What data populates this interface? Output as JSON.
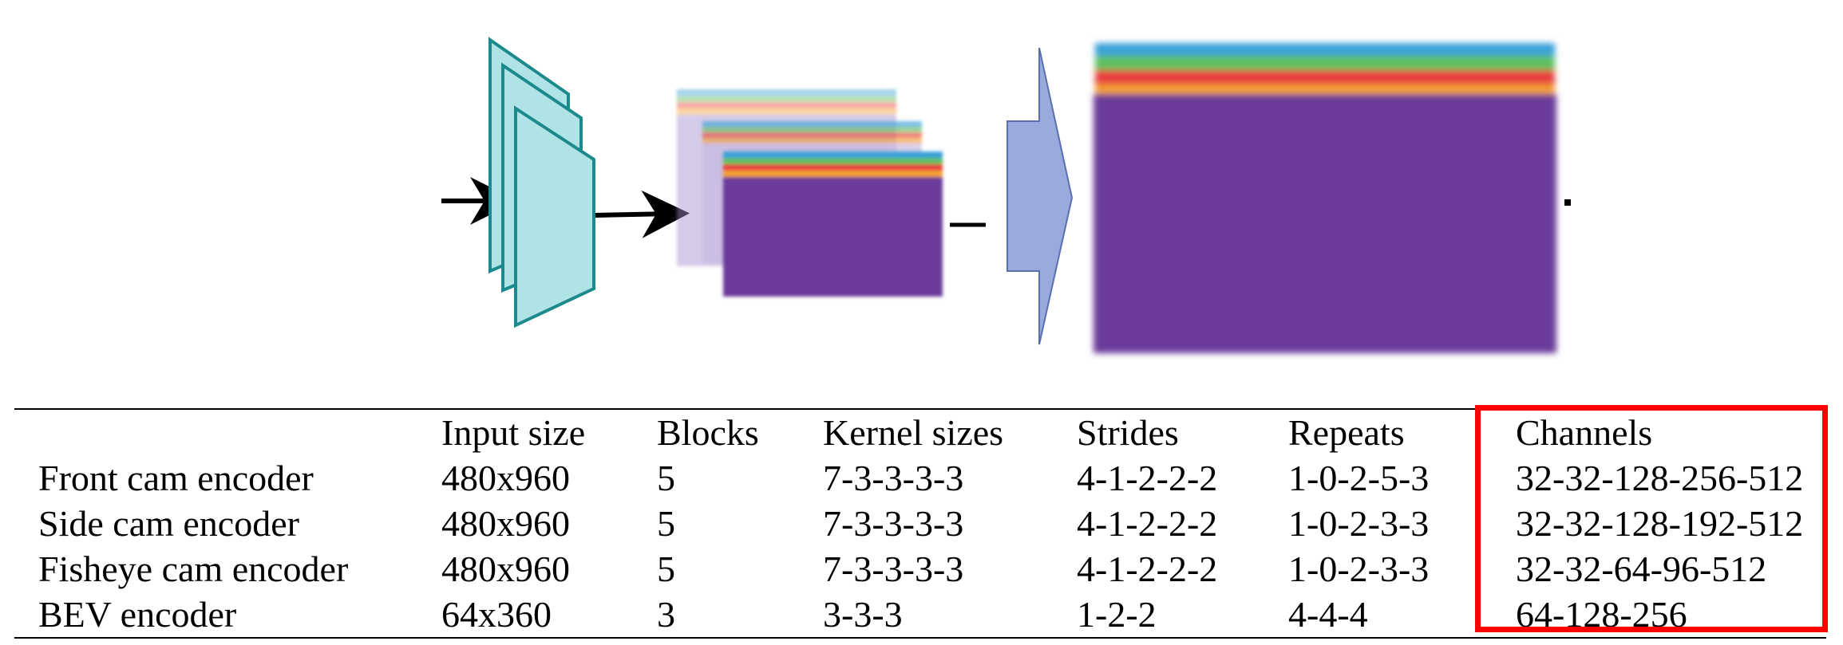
{
  "table": {
    "headers": [
      "",
      "Input size",
      "Blocks",
      "Kernel sizes",
      "Strides",
      "Repeats",
      "Channels"
    ],
    "rows": [
      {
        "name": "Front cam encoder",
        "input_size": "480x960",
        "blocks": "5",
        "kernel_sizes": "7-3-3-3-3",
        "strides": "4-1-2-2-2",
        "repeats": "1-0-2-5-3",
        "channels": "32-32-128-256-512"
      },
      {
        "name": "Side cam encoder",
        "input_size": "480x960",
        "blocks": "5",
        "kernel_sizes": "7-3-3-3-3",
        "strides": "4-1-2-2-2",
        "repeats": "1-0-2-3-3",
        "channels": "32-32-128-192-512"
      },
      {
        "name": "Fisheye cam encoder",
        "input_size": "480x960",
        "blocks": "5",
        "kernel_sizes": "7-3-3-3-3",
        "strides": "4-1-2-2-2",
        "repeats": "1-0-2-3-3",
        "channels": "32-32-64-96-512"
      },
      {
        "name": "BEV encoder",
        "input_size": "64x360",
        "blocks": "3",
        "kernel_sizes": "3-3-3",
        "strides": "1-2-2",
        "repeats": "4-4-4",
        "channels": "64-128-256"
      }
    ]
  },
  "colors": {
    "encoder_fill": "#b0e3e6",
    "encoder_stroke": "#1c8a8c",
    "feature_purple": "#6b3b9a",
    "arrow_block": "#98abdc",
    "highlight": "#ff0000"
  }
}
